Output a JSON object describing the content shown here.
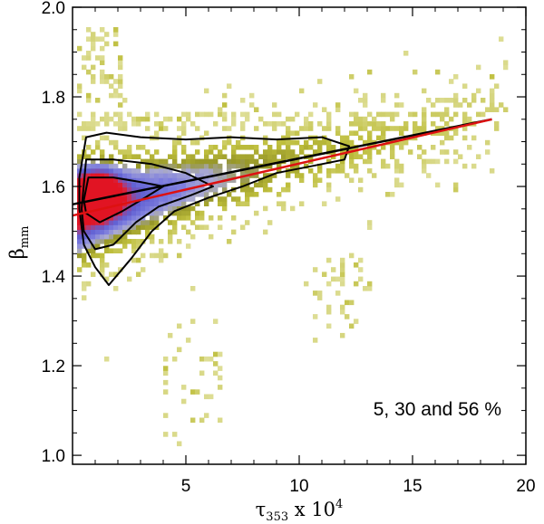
{
  "chart_data": {
    "type": "heatmap",
    "title": "",
    "xlabel": {
      "base": "τ",
      "sub": "353",
      "mid": " x 10",
      "sup": "4"
    },
    "ylabel": {
      "base": "β",
      "sub": "mm"
    },
    "xlim": [
      0,
      20
    ],
    "ylim": [
      0.98,
      2.0
    ],
    "x_ticks": [
      5,
      10,
      15,
      20
    ],
    "y_ticks": [
      1.0,
      1.2,
      1.4,
      1.6,
      1.8,
      2.0
    ],
    "y_tick_labels": [
      "1.0",
      "1.2",
      "1.4",
      "1.6",
      "1.8",
      "2.0"
    ],
    "annotation": "5, 30 and 56 %",
    "contour_levels_percent": [
      5,
      30,
      56
    ],
    "fit_lines": [
      {
        "name": "black fit",
        "color": "#000000",
        "x": [
          0,
          18.5
        ],
        "y": [
          1.56,
          1.75
        ]
      },
      {
        "name": "red fit",
        "color": "#dd1111",
        "x": [
          0,
          18.5
        ],
        "y": [
          1.535,
          1.75
        ]
      }
    ],
    "density_colors": {
      "low": "#d8d890",
      "mid": "#b0b020",
      "high_blue": "#7070d0",
      "peak": "#dd1122"
    },
    "density_peak": {
      "x": 1.0,
      "y": 1.58
    }
  }
}
